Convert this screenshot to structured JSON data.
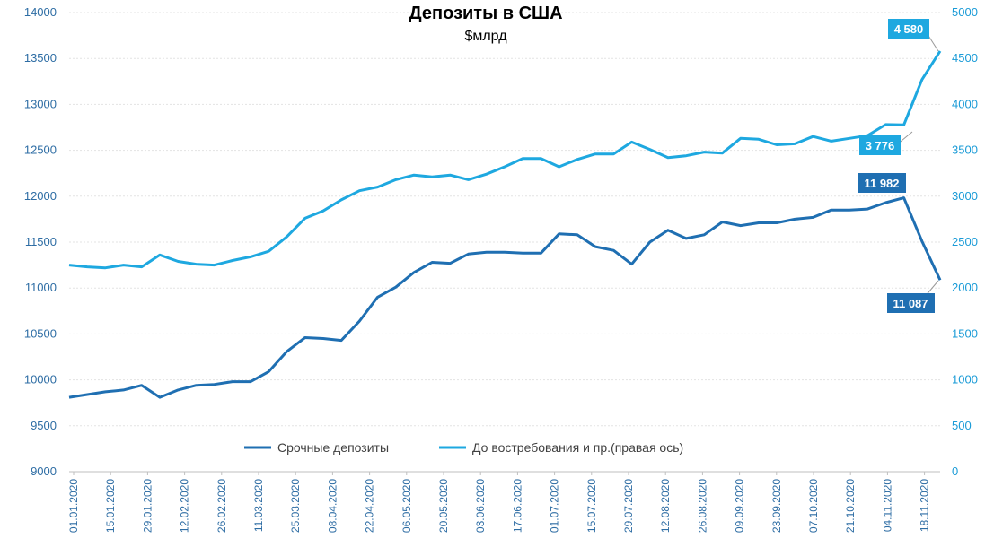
{
  "chart_data": {
    "type": "line",
    "title": "Депозиты в США",
    "subtitle": "$млрд",
    "x_tick_labels": [
      "01.01.2020",
      "15.01.2020",
      "29.01.2020",
      "12.02.2020",
      "26.02.2020",
      "11.03.2020",
      "25.03.2020",
      "08.04.2020",
      "22.04.2020",
      "06.05.2020",
      "20.05.2020",
      "03.06.2020",
      "17.06.2020",
      "01.07.2020",
      "15.07.2020",
      "29.07.2020",
      "12.08.2020",
      "26.08.2020",
      "09.09.2020",
      "23.09.2020",
      "07.10.2020",
      "21.10.2020",
      "04.11.2020",
      "18.11.2020"
    ],
    "y_left": {
      "min": 9000,
      "max": 14000,
      "ticks": [
        9000,
        9500,
        10000,
        10500,
        11000,
        11500,
        12000,
        12500,
        13000,
        13500,
        14000
      ]
    },
    "y_right": {
      "min": 0,
      "max": 5000,
      "ticks": [
        0,
        500,
        1000,
        1500,
        2000,
        2500,
        3000,
        3500,
        4000,
        4500,
        5000
      ]
    },
    "legend_position": "bottom-center",
    "grid": true,
    "series": [
      {
        "name": "Срочные депозиты",
        "axis": "left",
        "color": "#1f6fb2",
        "values": [
          9810,
          9840,
          9870,
          9890,
          9940,
          9810,
          9890,
          9940,
          9950,
          9980,
          9980,
          10090,
          10310,
          10460,
          10450,
          10430,
          10640,
          10900,
          11010,
          11170,
          11280,
          11270,
          11370,
          11390,
          11390,
          11380,
          11380,
          11590,
          11580,
          11450,
          11410,
          11260,
          11500,
          11630,
          11540,
          11580,
          11720,
          11680,
          11710,
          11710,
          11750,
          11770,
          11850,
          11850,
          11860,
          11930,
          11982,
          11510,
          11087
        ]
      },
      {
        "name": "До востребования и пр.(правая ось)",
        "axis": "right",
        "color": "#1ea8e0",
        "values": [
          2250,
          2230,
          2220,
          2250,
          2230,
          2360,
          2290,
          2260,
          2250,
          2300,
          2340,
          2400,
          2560,
          2760,
          2840,
          2960,
          3060,
          3100,
          3180,
          3230,
          3210,
          3230,
          3180,
          3240,
          3320,
          3410,
          3410,
          3320,
          3400,
          3460,
          3460,
          3590,
          3510,
          3420,
          3440,
          3480,
          3470,
          3630,
          3620,
          3560,
          3570,
          3650,
          3600,
          3630,
          3660,
          3780,
          3776,
          4270,
          4580
        ]
      }
    ],
    "annotations": [
      {
        "label": "4 580",
        "series": 1
      },
      {
        "label": "3 776",
        "series": 1
      },
      {
        "label": "11 982",
        "series": 0
      },
      {
        "label": "11 087",
        "series": 0
      }
    ]
  }
}
